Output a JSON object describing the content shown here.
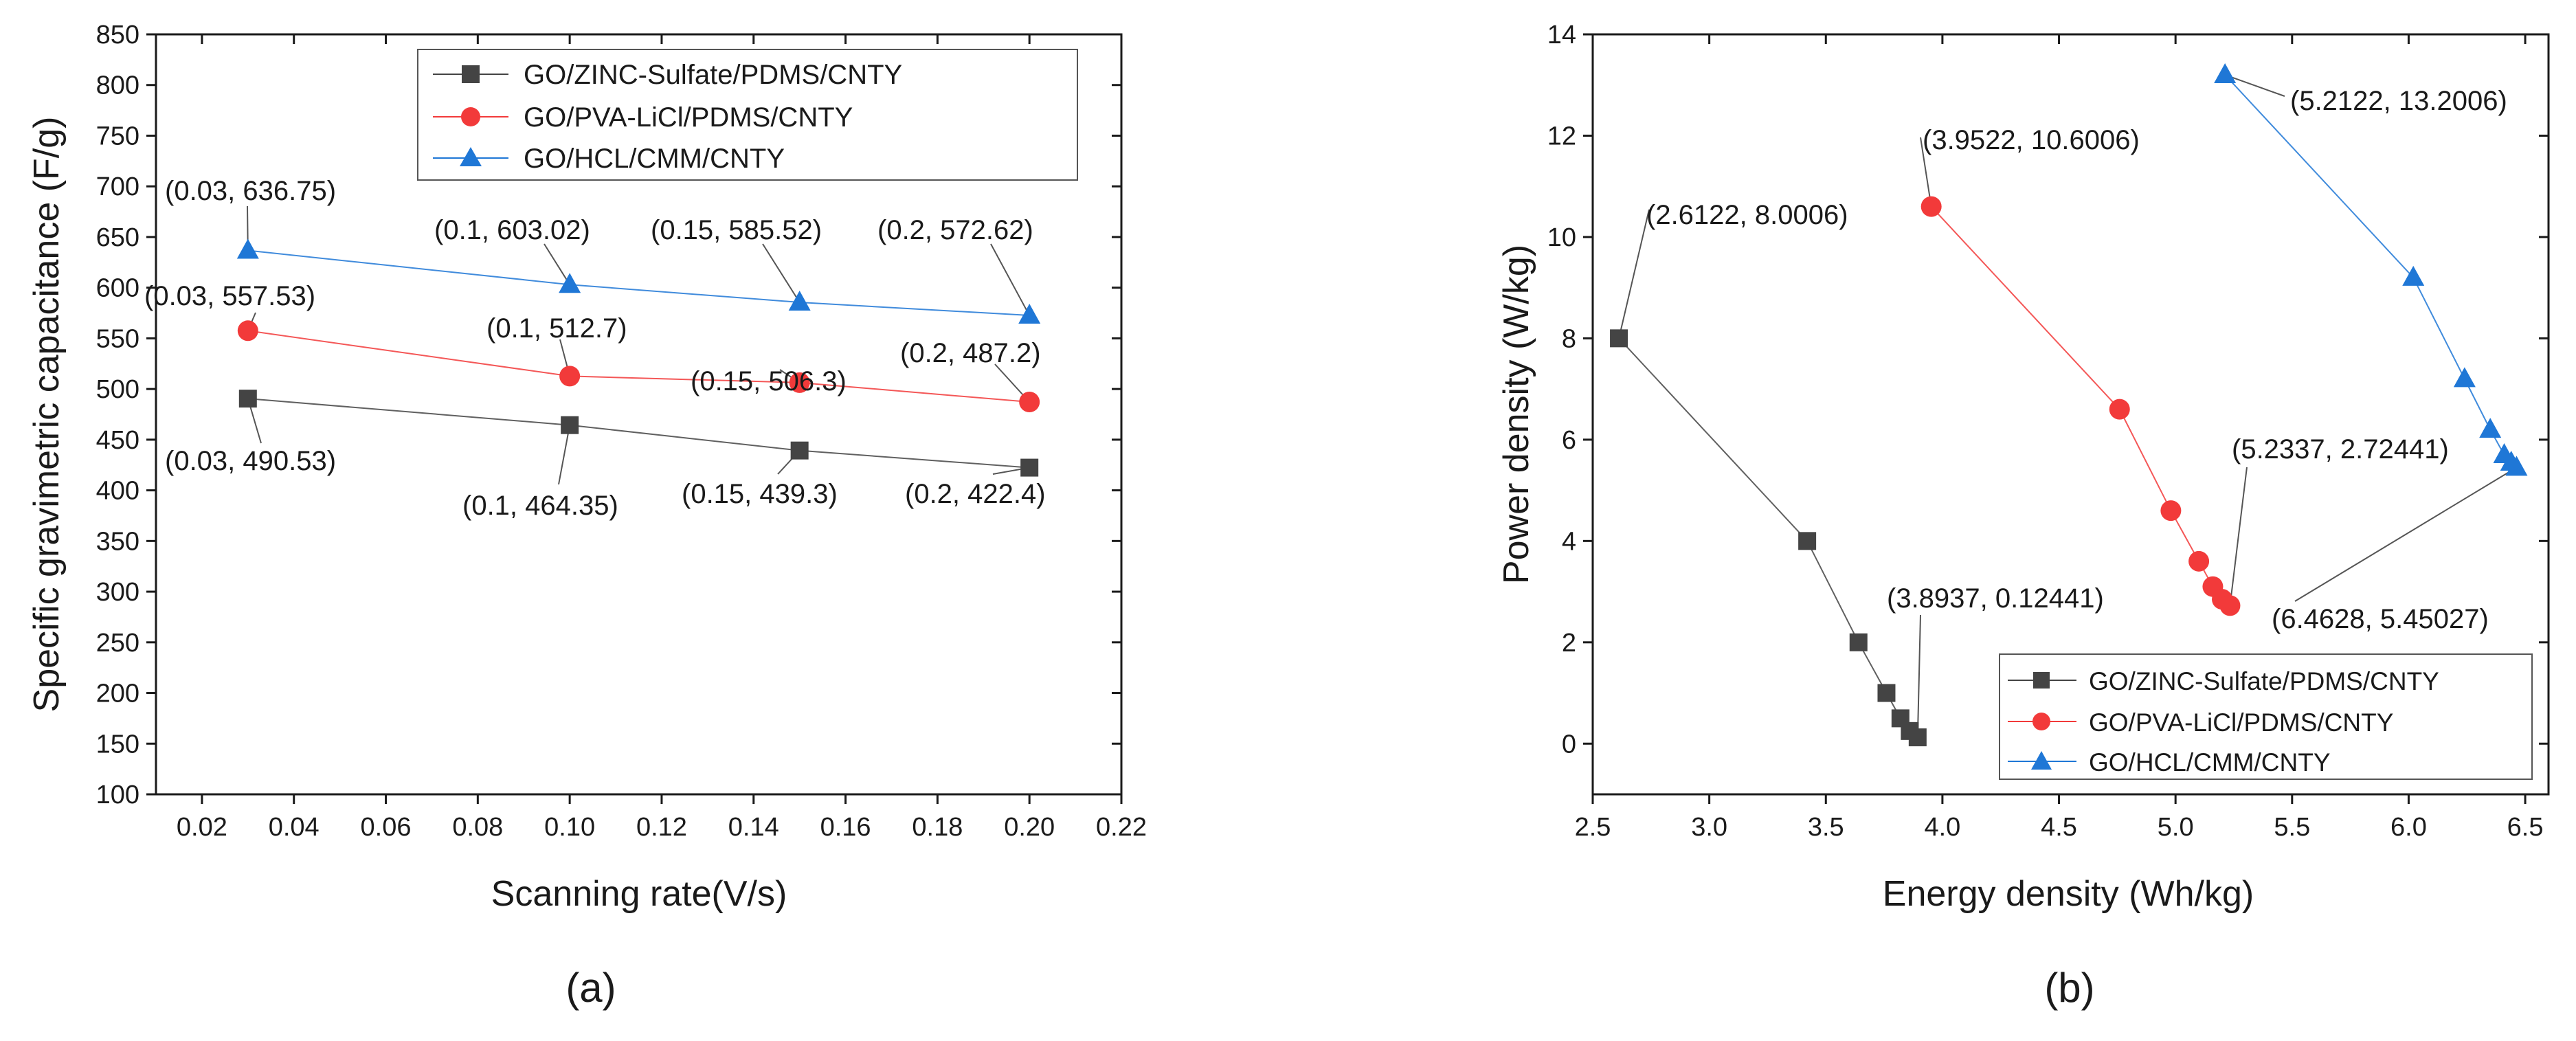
{
  "chart_data": [
    {
      "panel": "(a)",
      "type": "line",
      "xlabel": "Scanning rate(V/s)",
      "ylabel": "Specific gravimetric capacitance (F/g)",
      "xlim": [
        0.01,
        0.22
      ],
      "ylim": [
        100,
        850
      ],
      "xticks": [
        "0.02",
        "0.04",
        "0.06",
        "0.08",
        "0.10",
        "0.12",
        "0.14",
        "0.16",
        "0.18",
        "0.20",
        "0.22"
      ],
      "yticks": [
        "100",
        "150",
        "200",
        "250",
        "300",
        "350",
        "400",
        "450",
        "500",
        "550",
        "600",
        "650",
        "700",
        "750",
        "800",
        "850"
      ],
      "legend_position": "top-right",
      "series": [
        {
          "name": "GO/ZINC-Sulfate/PDMS/CNTY",
          "marker": "square",
          "color": "#444444",
          "x": [
            0.03,
            0.1,
            0.15,
            0.2
          ],
          "y": [
            490.53,
            464.35,
            439.3,
            422.4
          ],
          "labels": [
            "(0.03, 490.53)",
            "(0.1, 464.35)",
            "(0.15, 439.3)",
            "(0.2, 422.4)"
          ]
        },
        {
          "name": "GO/PVA-LiCl/PDMS/CNTY",
          "marker": "circle",
          "color": "#f23a3a",
          "x": [
            0.03,
            0.1,
            0.15,
            0.2
          ],
          "y": [
            557.53,
            512.7,
            506.3,
            487.2
          ],
          "labels": [
            "(0.03, 557.53)",
            "(0.1, 512.7)",
            "(0.15, 506.3)",
            "(0.2, 487.2)"
          ]
        },
        {
          "name": "GO/HCL/CMM/CNTY",
          "marker": "triangle",
          "color": "#1f77d6",
          "x": [
            0.03,
            0.1,
            0.15,
            0.2
          ],
          "y": [
            636.75,
            603.02,
            585.52,
            572.62
          ],
          "labels": [
            "(0.03, 636.75)",
            "(0.1, 603.02)",
            "(0.15, 585.52)",
            "(0.2, 572.62)"
          ]
        }
      ]
    },
    {
      "panel": "(b)",
      "type": "line",
      "xlabel": "Energy density (Wh/kg)",
      "ylabel": "Power density (W/kg)",
      "xlim": [
        2.5,
        6.6
      ],
      "ylim": [
        -1,
        14
      ],
      "xticks": [
        "2.5",
        "3.0",
        "3.5",
        "4.0",
        "4.5",
        "5.0",
        "5.5",
        "6.0",
        "6.5"
      ],
      "yticks": [
        "0",
        "2",
        "4",
        "6",
        "8",
        "10",
        "12",
        "14"
      ],
      "legend_position": "bottom-right",
      "series": [
        {
          "name": "GO/ZINC-Sulfate/PDMS/CNTY",
          "marker": "square",
          "color": "#444444",
          "x": [
            2.6122,
            3.42,
            3.64,
            3.76,
            3.82,
            3.86,
            3.8937
          ],
          "y": [
            8.0006,
            4.0,
            2.0,
            1.0,
            0.5,
            0.25,
            0.12441
          ]
        },
        {
          "name": "GO/PVA-LiCl/PDMS/CNTY",
          "marker": "circle",
          "color": "#f23a3a",
          "x": [
            3.9522,
            4.76,
            4.98,
            5.1,
            5.16,
            5.2,
            5.2337
          ],
          "y": [
            10.6006,
            6.6,
            4.6,
            3.6,
            3.1,
            2.85,
            2.72441
          ]
        },
        {
          "name": "GO/HCL/CMM/CNTY",
          "marker": "triangle",
          "color": "#1f77d6",
          "x": [
            5.2122,
            6.02,
            6.24,
            6.35,
            6.41,
            6.44,
            6.4628
          ],
          "y": [
            13.2006,
            9.2,
            7.2,
            6.2,
            5.7,
            5.55,
            5.45027
          ]
        }
      ],
      "annotations": [
        {
          "text": "(2.6122, 8.0006)",
          "series": 0,
          "point": 0
        },
        {
          "text": "(3.8937, 0.12441)",
          "series": 0,
          "point": 6
        },
        {
          "text": "(3.9522, 10.6006)",
          "series": 1,
          "point": 0
        },
        {
          "text": "(5.2337, 2.72441)",
          "series": 1,
          "point": 6
        },
        {
          "text": "(5.2122, 13.2006)",
          "series": 2,
          "point": 0
        },
        {
          "text": "(6.4628, 5.45027)",
          "series": 2,
          "point": 6
        }
      ]
    }
  ]
}
